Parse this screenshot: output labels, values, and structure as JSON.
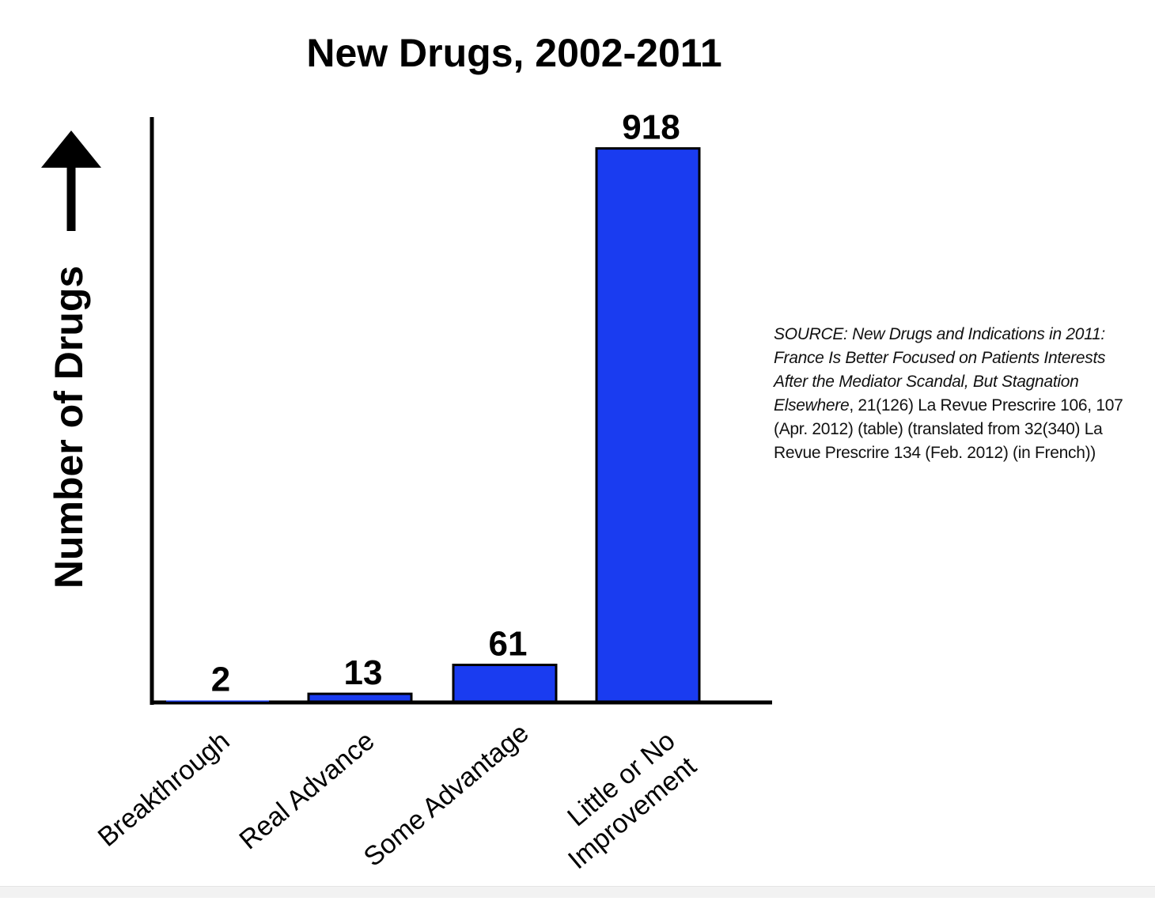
{
  "chart_data": {
    "type": "bar",
    "title": "New Drugs, 2002-2011",
    "ylabel": "Number of Drugs",
    "xlabel": "",
    "categories": [
      "Breakthrough",
      "Real Advance",
      "Some Advantage",
      "Little or No Improvement"
    ],
    "category_lines": [
      [
        "Breakthrough"
      ],
      [
        "Real Advance"
      ],
      [
        "Some Advantage"
      ],
      [
        "Little or No",
        "Improvement"
      ]
    ],
    "values": [
      2,
      13,
      61,
      918
    ],
    "data_labels": [
      "2",
      "13",
      "61",
      "918"
    ],
    "ylim": [
      0,
      970
    ],
    "grid": false,
    "legend": "none",
    "y_ticks": "none",
    "bar_color": "#1a3cf0"
  },
  "source": {
    "italic_text": "SOURCE: New Drugs and Indications in 2011: France Is Better Focused on Patients Interests After the Mediator Scandal, But Stagnation Elsewhere",
    "plain_text": ", 21(126) La Revue Prescrire 106, 107 (Apr. 2012) (table) (translated from 32(340) La Revue Prescrire 134 (Feb. 2012) (in French))"
  }
}
